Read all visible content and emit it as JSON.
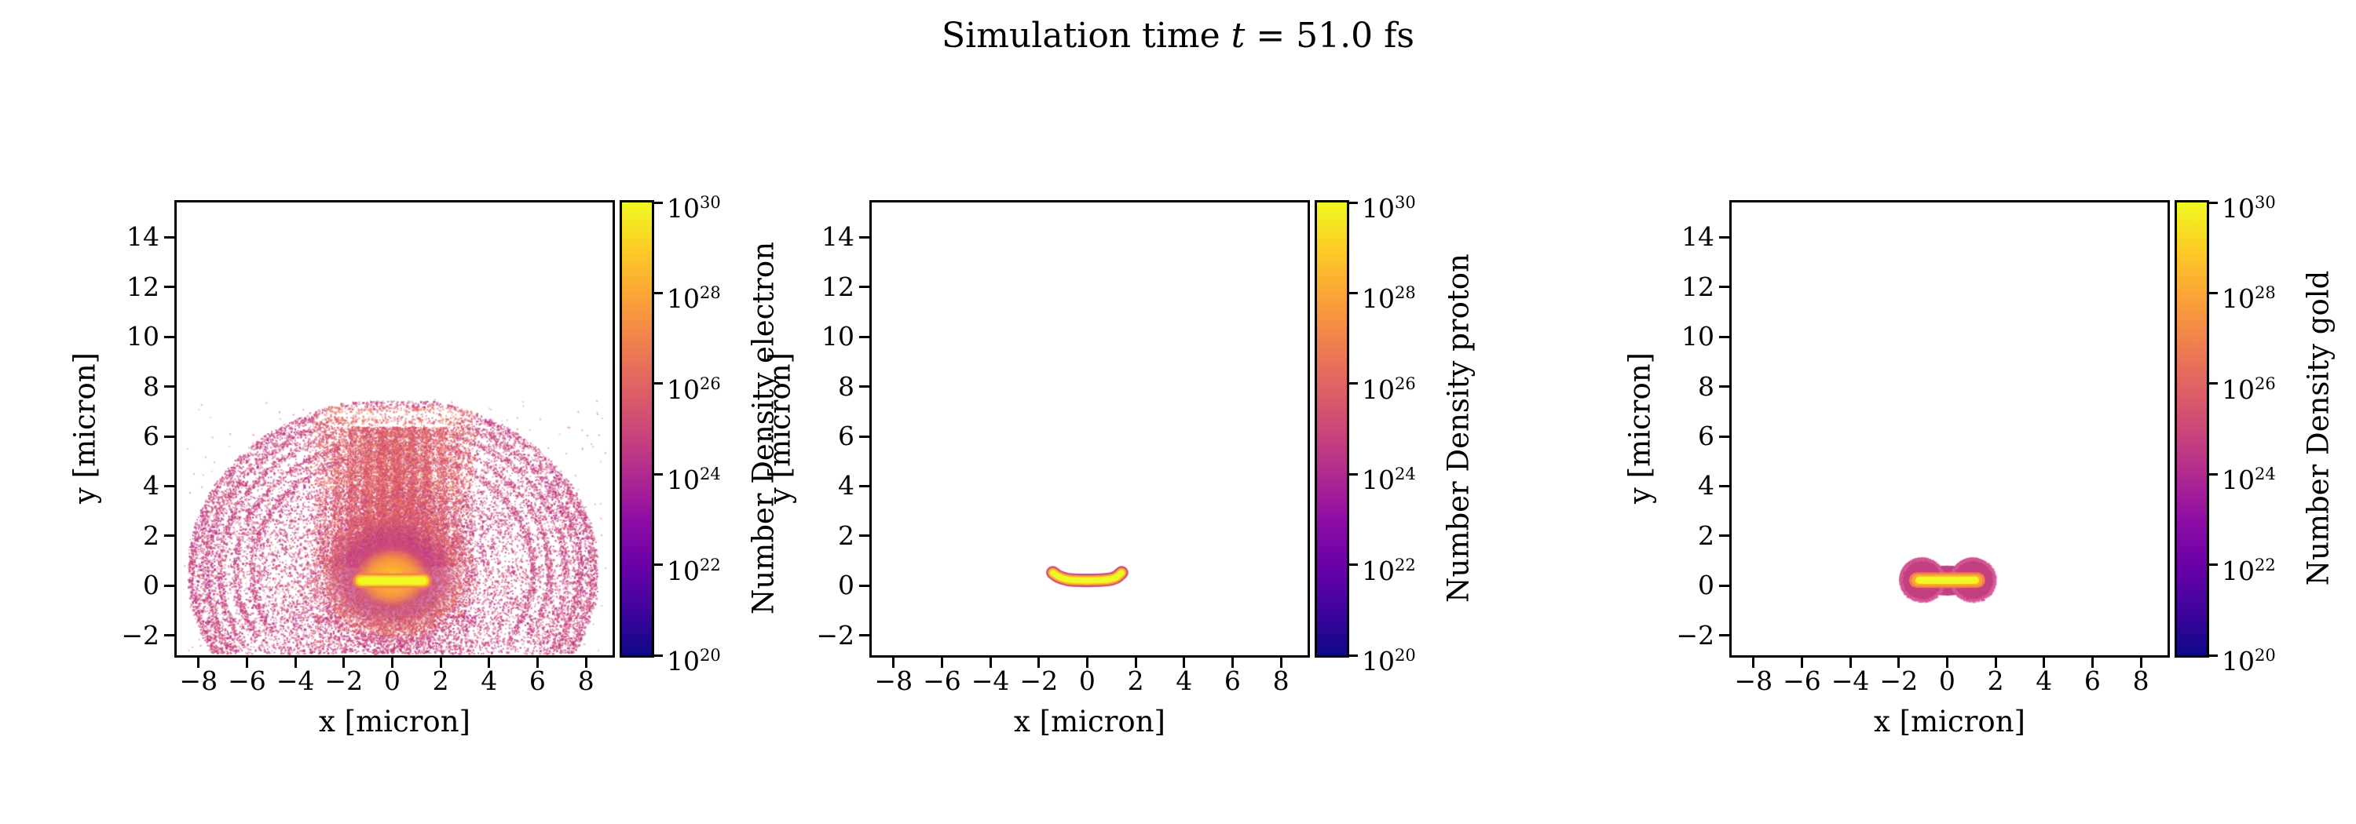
{
  "figure": {
    "title": {
      "full_text": "Simulation time t = 51.0 fs",
      "prefix": "Simulation time ",
      "variable": "t",
      "suffix": " = 51.0 fs"
    }
  },
  "axes": {
    "xlabel": "x [micron]",
    "ylabel": "y [micron]",
    "xlim": [
      -8.9,
      9.1
    ],
    "ylim": [
      -2.8,
      15.4
    ],
    "xticks": [
      -8,
      -6,
      -4,
      -2,
      0,
      2,
      4,
      6,
      8
    ],
    "yticks": [
      -2,
      0,
      2,
      4,
      6,
      8,
      10,
      12,
      14
    ]
  },
  "colorbar": {
    "scale": "log",
    "unit_exponent_min": 20,
    "unit_exponent_max": 30,
    "tick_exponents": [
      30,
      28,
      26,
      24,
      22,
      20
    ],
    "colormap": "plasma",
    "gradient_stops": [
      "#0d0887",
      "#41049d",
      "#6a00a8",
      "#8f0da4",
      "#b12a90",
      "#cc4778",
      "#e16462",
      "#f1844b",
      "#fca636",
      "#fcce25",
      "#f0f921"
    ]
  },
  "panels": [
    {
      "id": "electron",
      "cbar_label": "Number Density electron"
    },
    {
      "id": "proton",
      "cbar_label": "Number Density proton"
    },
    {
      "id": "gold",
      "cbar_label": "Number Density gold"
    }
  ],
  "chart_data": [
    {
      "type": "heatmap",
      "species": "electron",
      "title": "Number Density electron",
      "xlabel": "x [micron]",
      "ylabel": "y [micron]",
      "x_range": [
        -8.9,
        9.1
      ],
      "y_range": [
        -2.8,
        15.4
      ],
      "colorbar_range": [
        1e+20,
        1e+30
      ],
      "features": {
        "target_bar": {
          "x": [
            -1.32,
            1.32
          ],
          "y": [
            -0.1,
            0.5
          ],
          "peak_density": 1e+30
        },
        "core_halo": {
          "center": [
            0,
            0.4
          ],
          "rx": 2.9,
          "ry": 2.3,
          "density_range": [
            1e+25,
            1e+28
          ]
        },
        "plume_dome": {
          "center": [
            0,
            0.6
          ],
          "rx": 8.3,
          "ry": 6.8,
          "y_min": -2.72,
          "density_range": [
            1e+21,
            1e+24
          ],
          "striation_band_y": [
            3.9,
            7.2
          ],
          "striation_spacing": 0.5
        },
        "curtain": {
          "x": [
            -3.3,
            3.3
          ],
          "y": [
            0.8,
            6.4
          ],
          "density_range": [
            1e+23,
            1e+25
          ]
        }
      },
      "render": {
        "seed": 42,
        "dome_attempts": 100000,
        "rim_points": 5200,
        "curtain_attempts": 26000,
        "stray_points": 420,
        "halo_speckles": 2600,
        "bar_y": 0.2,
        "bar_layers": [
          {
            "halfspan": 1.33,
            "width": 0.6,
            "color": "#f1844b"
          },
          {
            "halfspan": 1.3,
            "width": 0.44,
            "color": "#fcce25"
          },
          {
            "halfspan": 1.27,
            "width": 0.3,
            "color": "#f0f921"
          }
        ]
      }
    },
    {
      "type": "heatmap",
      "species": "proton",
      "title": "Number Density proton",
      "xlabel": "x [micron]",
      "ylabel": "y [micron]",
      "x_range": [
        -8.9,
        9.1
      ],
      "y_range": [
        -2.8,
        15.4
      ],
      "colorbar_range": [
        1e+20,
        1e+30
      ],
      "features": {
        "target_bar": {
          "x": [
            -1.45,
            1.45
          ],
          "y": [
            -0.05,
            0.6
          ],
          "shape": "shallow-u",
          "peak_density": 1e+30,
          "edge_density": 1e+26
        }
      },
      "render": {
        "spine": [
          [
            -1.42,
            0.52
          ],
          [
            -1.1,
            0.24
          ],
          [
            0,
            0.2
          ],
          [
            1.1,
            0.24
          ],
          [
            1.42,
            0.52
          ]
        ],
        "widths": [
          0.54,
          0.4,
          0.26
        ],
        "colors": [
          "#cc4778",
          "#fca636",
          "#f0f921"
        ]
      }
    },
    {
      "type": "heatmap",
      "species": "gold",
      "title": "Number Density gold",
      "xlabel": "x [micron]",
      "ylabel": "y [micron]",
      "x_range": [
        -8.9,
        9.1
      ],
      "y_range": [
        -2.8,
        15.4
      ],
      "colorbar_range": [
        1e+20,
        1e+30
      ],
      "features": {
        "expanded_blob": {
          "lobes": [
            [
              -1.05,
              0.25
            ],
            [
              1.05,
              0.25
            ]
          ],
          "lobe_radius": 0.93,
          "bridge": {
            "center": [
              0,
              0.2
            ],
            "rx": 1.2,
            "ry": 0.6
          },
          "density": 1e+25
        },
        "target_bar": {
          "x": [
            -1.25,
            1.25
          ],
          "y": [
            0.0,
            0.45
          ],
          "peak_density": 1e+30
        }
      },
      "render": {
        "seed": 7,
        "rim_speckles": 1200,
        "blob_color": "#c33f7f",
        "blob_edge_color": "#d65a9b",
        "bar_y": 0.22,
        "bar_layers": [
          {
            "halfspan": 1.25,
            "width": 0.62,
            "color": "#f1844b"
          },
          {
            "halfspan": 1.22,
            "width": 0.46,
            "color": "#fca636"
          },
          {
            "halfspan": 1.16,
            "width": 0.3,
            "color": "#f0f921"
          }
        ]
      }
    }
  ]
}
